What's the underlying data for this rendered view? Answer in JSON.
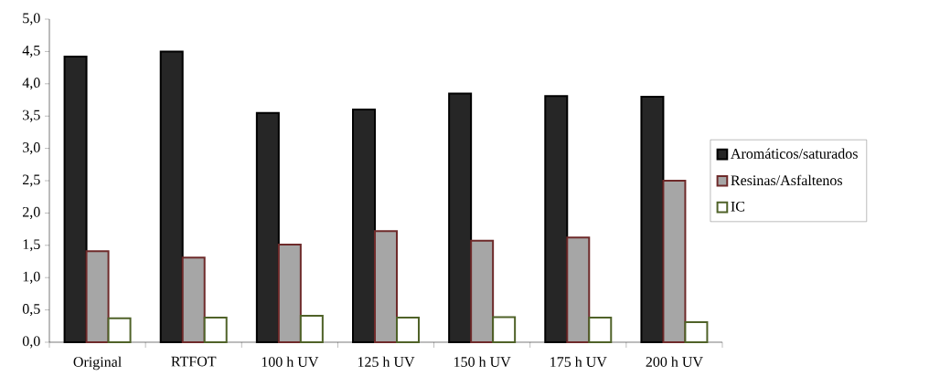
{
  "chart_data": {
    "type": "bar",
    "categories": [
      "Original",
      "RTFOT",
      "100 h UV",
      "125 h UV",
      "150 h UV",
      "175 h UV",
      "200 h UV"
    ],
    "series": [
      {
        "name": "Aromáticos/saturados",
        "color": "#262626",
        "values": [
          4.42,
          4.5,
          3.55,
          3.6,
          3.85,
          3.81,
          3.8
        ]
      },
      {
        "name": "Resinas/Asfaltenos",
        "color": "#a6a6a6",
        "values": [
          1.41,
          1.31,
          1.51,
          1.72,
          1.57,
          1.62,
          2.5
        ]
      },
      {
        "name": "IC",
        "color": "#ffffff",
        "values": [
          0.37,
          0.38,
          0.41,
          0.38,
          0.39,
          0.38,
          0.31
        ]
      }
    ],
    "ylim": [
      0,
      5
    ],
    "yticks": [
      {
        "value": 0,
        "label": "0,0"
      },
      {
        "value": 0.5,
        "label": "0,5"
      },
      {
        "value": 1,
        "label": "1,0"
      },
      {
        "value": 1.5,
        "label": "1,5"
      },
      {
        "value": 2,
        "label": "2,0"
      },
      {
        "value": 2.5,
        "label": "2,5"
      },
      {
        "value": 3,
        "label": "3,0"
      },
      {
        "value": 3.5,
        "label": "3,5"
      },
      {
        "value": 4,
        "label": "4,0"
      },
      {
        "value": 4.5,
        "label": "4,5"
      },
      {
        "value": 5,
        "label": "5,0"
      }
    ],
    "grid": false,
    "legend": "right"
  }
}
